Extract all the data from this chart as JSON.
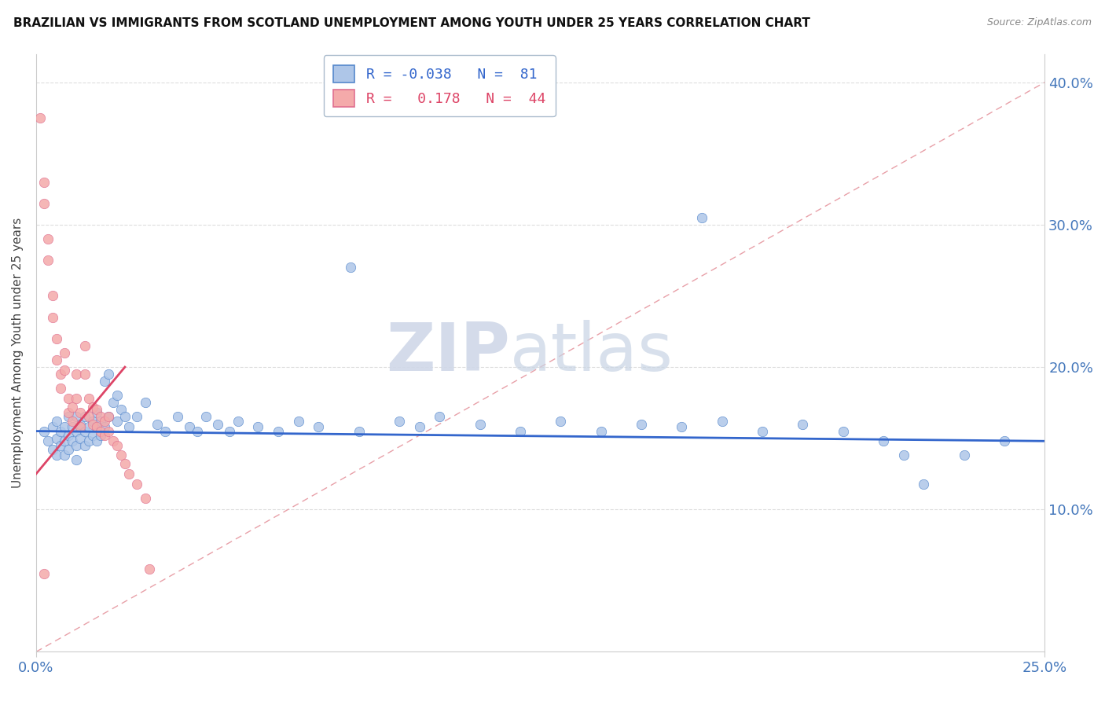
{
  "title": "BRAZILIAN VS IMMIGRANTS FROM SCOTLAND UNEMPLOYMENT AMONG YOUTH UNDER 25 YEARS CORRELATION CHART",
  "source": "Source: ZipAtlas.com",
  "ylabel_label": "Unemployment Among Youth under 25 years",
  "x_min": 0.0,
  "x_max": 0.25,
  "y_min": 0.0,
  "y_max": 0.42,
  "blue_R": "-0.038",
  "blue_N": "81",
  "pink_R": "0.178",
  "pink_N": "44",
  "blue_color": "#AEC6E8",
  "pink_color": "#F4AAAA",
  "blue_edge_color": "#5588CC",
  "pink_edge_color": "#E07090",
  "blue_line_color": "#3366CC",
  "pink_line_color": "#DD4466",
  "diag_line_color": "#E8A0A8",
  "watermark_zip": "ZIP",
  "watermark_atlas": "atlas",
  "blue_scatter": [
    [
      0.002,
      0.155
    ],
    [
      0.003,
      0.148
    ],
    [
      0.004,
      0.142
    ],
    [
      0.004,
      0.158
    ],
    [
      0.005,
      0.15
    ],
    [
      0.005,
      0.162
    ],
    [
      0.005,
      0.138
    ],
    [
      0.006,
      0.155
    ],
    [
      0.006,
      0.145
    ],
    [
      0.007,
      0.158
    ],
    [
      0.007,
      0.148
    ],
    [
      0.007,
      0.138
    ],
    [
      0.008,
      0.165
    ],
    [
      0.008,
      0.152
    ],
    [
      0.008,
      0.142
    ],
    [
      0.009,
      0.158
    ],
    [
      0.009,
      0.148
    ],
    [
      0.01,
      0.155
    ],
    [
      0.01,
      0.165
    ],
    [
      0.01,
      0.145
    ],
    [
      0.01,
      0.135
    ],
    [
      0.011,
      0.16
    ],
    [
      0.011,
      0.15
    ],
    [
      0.012,
      0.165
    ],
    [
      0.012,
      0.155
    ],
    [
      0.012,
      0.145
    ],
    [
      0.013,
      0.158
    ],
    [
      0.013,
      0.148
    ],
    [
      0.014,
      0.162
    ],
    [
      0.014,
      0.152
    ],
    [
      0.015,
      0.168
    ],
    [
      0.015,
      0.158
    ],
    [
      0.015,
      0.148
    ],
    [
      0.016,
      0.162
    ],
    [
      0.016,
      0.152
    ],
    [
      0.017,
      0.19
    ],
    [
      0.017,
      0.158
    ],
    [
      0.018,
      0.195
    ],
    [
      0.018,
      0.165
    ],
    [
      0.019,
      0.175
    ],
    [
      0.02,
      0.18
    ],
    [
      0.02,
      0.162
    ],
    [
      0.021,
      0.17
    ],
    [
      0.022,
      0.165
    ],
    [
      0.023,
      0.158
    ],
    [
      0.025,
      0.165
    ],
    [
      0.027,
      0.175
    ],
    [
      0.03,
      0.16
    ],
    [
      0.032,
      0.155
    ],
    [
      0.035,
      0.165
    ],
    [
      0.038,
      0.158
    ],
    [
      0.04,
      0.155
    ],
    [
      0.042,
      0.165
    ],
    [
      0.045,
      0.16
    ],
    [
      0.048,
      0.155
    ],
    [
      0.05,
      0.162
    ],
    [
      0.055,
      0.158
    ],
    [
      0.06,
      0.155
    ],
    [
      0.065,
      0.162
    ],
    [
      0.07,
      0.158
    ],
    [
      0.078,
      0.27
    ],
    [
      0.08,
      0.155
    ],
    [
      0.09,
      0.162
    ],
    [
      0.095,
      0.158
    ],
    [
      0.1,
      0.165
    ],
    [
      0.11,
      0.16
    ],
    [
      0.12,
      0.155
    ],
    [
      0.13,
      0.162
    ],
    [
      0.14,
      0.155
    ],
    [
      0.15,
      0.16
    ],
    [
      0.16,
      0.158
    ],
    [
      0.17,
      0.162
    ],
    [
      0.18,
      0.155
    ],
    [
      0.19,
      0.16
    ],
    [
      0.2,
      0.155
    ],
    [
      0.165,
      0.305
    ],
    [
      0.21,
      0.148
    ],
    [
      0.215,
      0.138
    ],
    [
      0.22,
      0.118
    ],
    [
      0.23,
      0.138
    ],
    [
      0.24,
      0.148
    ]
  ],
  "pink_scatter": [
    [
      0.001,
      0.375
    ],
    [
      0.002,
      0.33
    ],
    [
      0.002,
      0.315
    ],
    [
      0.003,
      0.29
    ],
    [
      0.003,
      0.275
    ],
    [
      0.004,
      0.25
    ],
    [
      0.004,
      0.235
    ],
    [
      0.005,
      0.22
    ],
    [
      0.005,
      0.205
    ],
    [
      0.006,
      0.195
    ],
    [
      0.006,
      0.185
    ],
    [
      0.007,
      0.21
    ],
    [
      0.007,
      0.198
    ],
    [
      0.008,
      0.178
    ],
    [
      0.008,
      0.168
    ],
    [
      0.009,
      0.172
    ],
    [
      0.009,
      0.162
    ],
    [
      0.01,
      0.195
    ],
    [
      0.01,
      0.178
    ],
    [
      0.011,
      0.168
    ],
    [
      0.011,
      0.158
    ],
    [
      0.012,
      0.215
    ],
    [
      0.012,
      0.195
    ],
    [
      0.013,
      0.178
    ],
    [
      0.013,
      0.165
    ],
    [
      0.014,
      0.172
    ],
    [
      0.014,
      0.16
    ],
    [
      0.015,
      0.17
    ],
    [
      0.015,
      0.158
    ],
    [
      0.016,
      0.165
    ],
    [
      0.016,
      0.155
    ],
    [
      0.017,
      0.162
    ],
    [
      0.017,
      0.152
    ],
    [
      0.018,
      0.165
    ],
    [
      0.018,
      0.155
    ],
    [
      0.019,
      0.148
    ],
    [
      0.02,
      0.145
    ],
    [
      0.021,
      0.138
    ],
    [
      0.022,
      0.132
    ],
    [
      0.023,
      0.125
    ],
    [
      0.025,
      0.118
    ],
    [
      0.027,
      0.108
    ],
    [
      0.028,
      0.058
    ],
    [
      0.002,
      0.055
    ]
  ]
}
